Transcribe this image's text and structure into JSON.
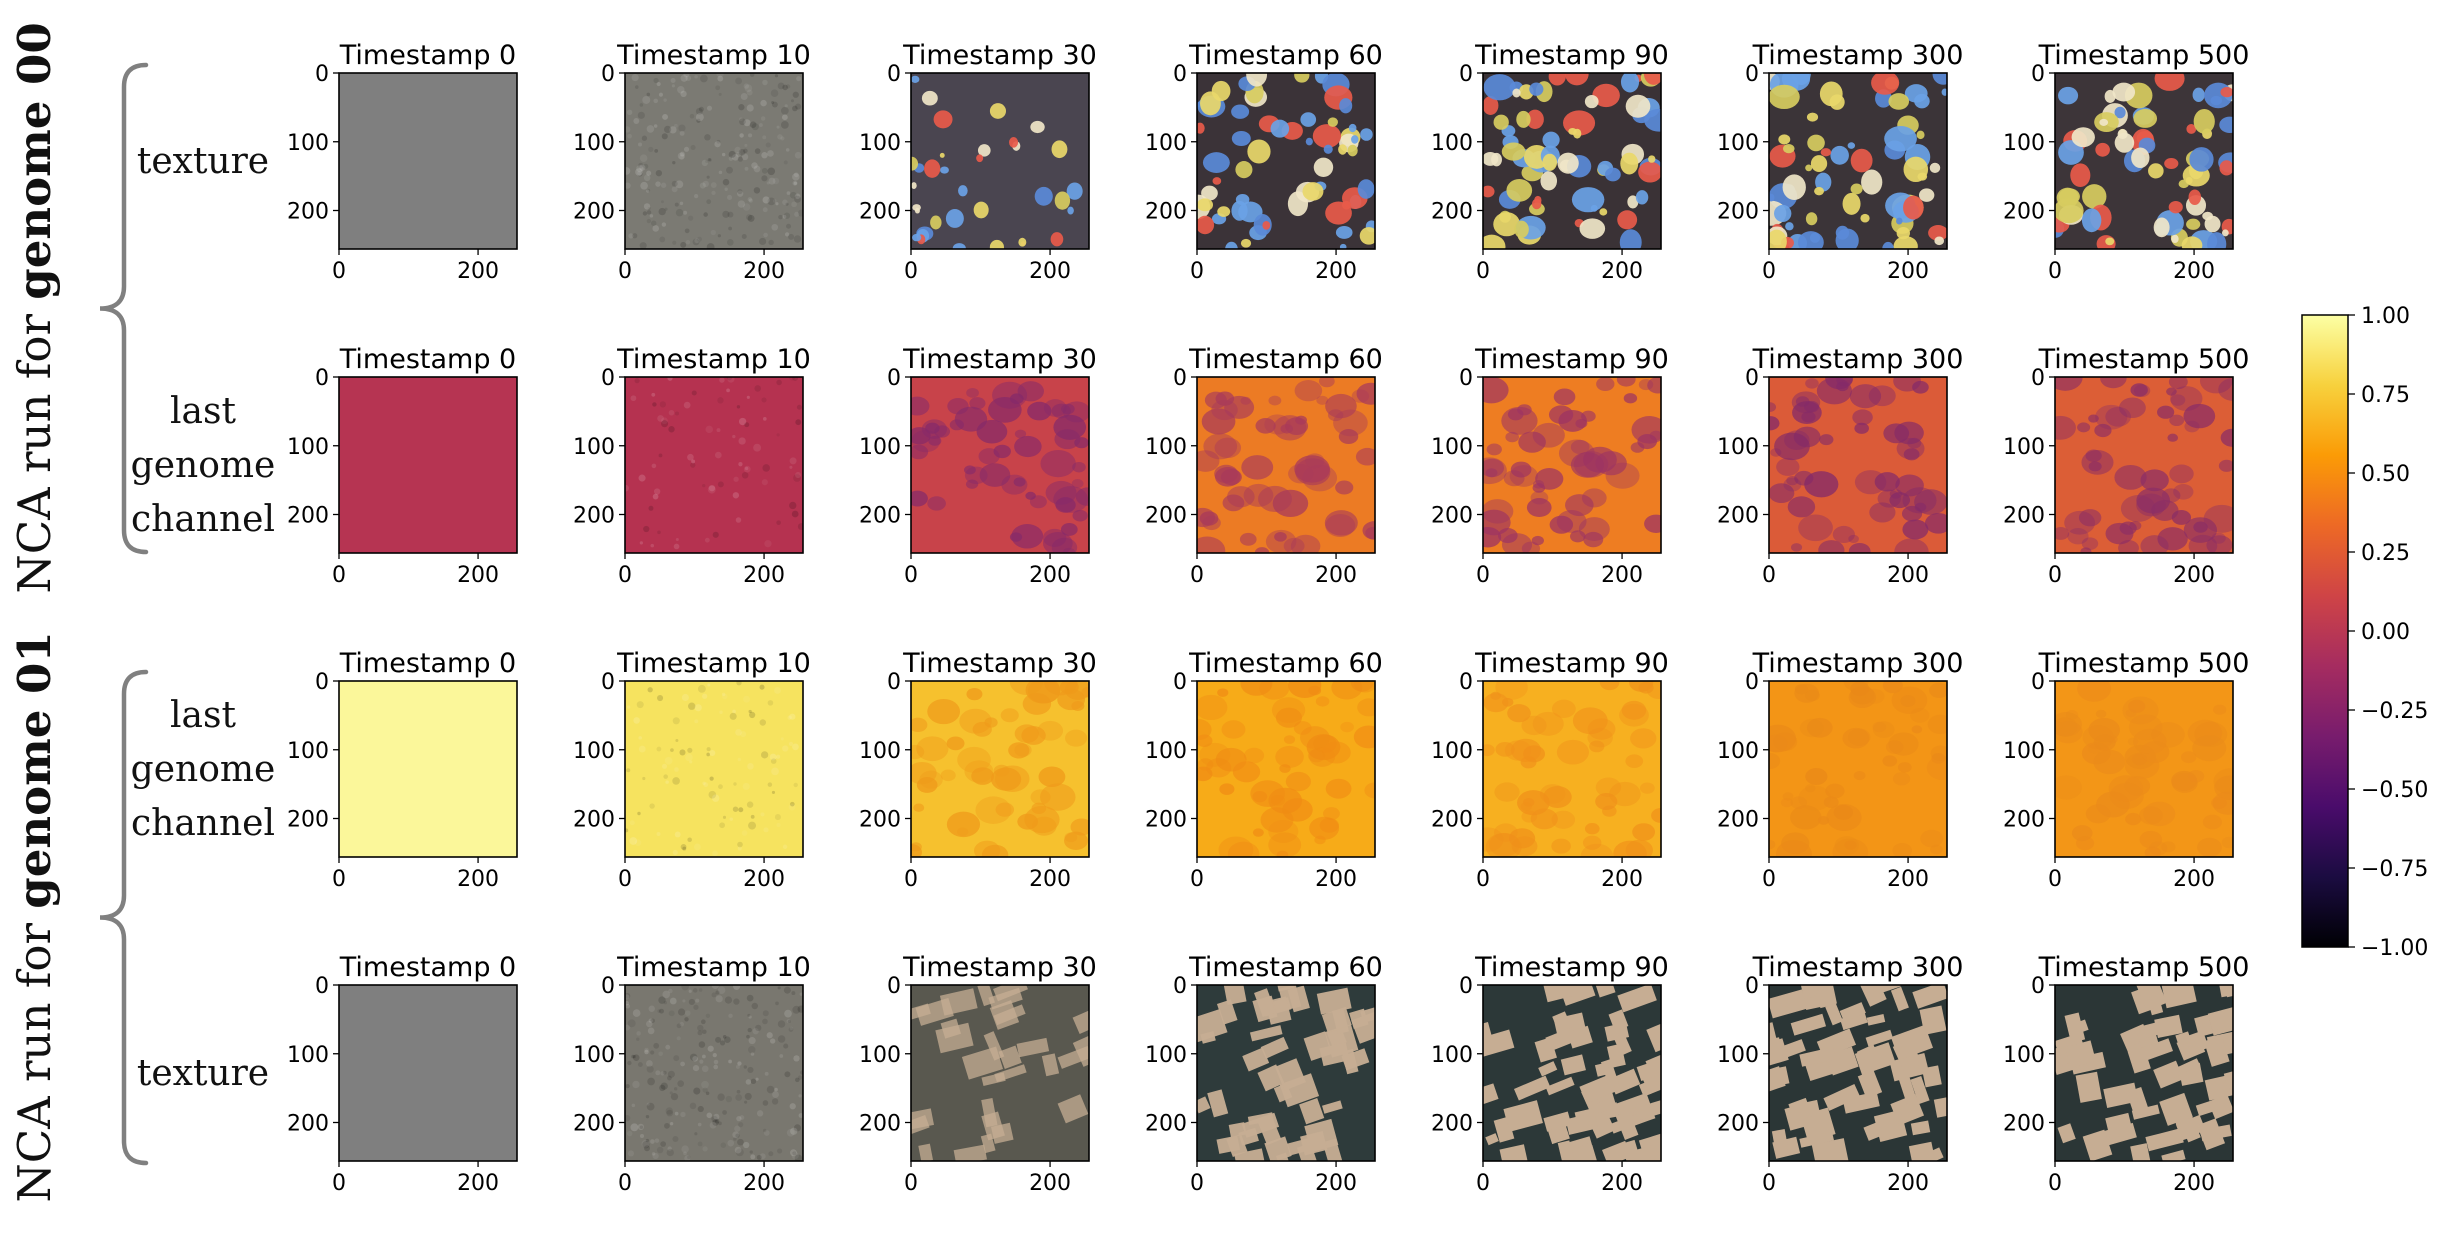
{
  "figure": {
    "groups": [
      {
        "prefix": "NCA run for ",
        "bold": "genome 00",
        "rows": [
          0,
          1
        ]
      },
      {
        "prefix": "NCA run for ",
        "bold": "genome 01",
        "rows": [
          2,
          3
        ]
      }
    ],
    "rows": [
      {
        "label_lines": [
          "texture"
        ],
        "kind": "texture-spots"
      },
      {
        "label_lines": [
          "last",
          "genome",
          "channel"
        ],
        "kind": "channel-g0"
      },
      {
        "label_lines": [
          "last",
          "genome",
          "channel"
        ],
        "kind": "channel-g1"
      },
      {
        "label_lines": [
          "texture"
        ],
        "kind": "texture-blocks"
      }
    ],
    "timestamps": [
      0,
      10,
      30,
      60,
      90,
      300,
      500
    ],
    "panel_title_prefix": "Timestamp ",
    "x_ticks": [
      "0",
      "200"
    ],
    "y_ticks": [
      "0",
      "100",
      "200"
    ],
    "cells": [
      [
        {
          "fill": "#7f7f7f"
        },
        {
          "fill": "#7b7a73",
          "grain": 0.9
        },
        {
          "fill": "#4a4550",
          "dots": 0.5
        },
        {
          "fill": "#3b3338",
          "dots": 0.9
        },
        {
          "fill": "#3a3236",
          "dots": 1.0
        },
        {
          "fill": "#3b3438",
          "dots": 1.0
        },
        {
          "fill": "#3d3539",
          "dots": 1.0
        }
      ],
      [
        {
          "fill": "#b63452"
        },
        {
          "fill": "#b53250",
          "grain": 0.3
        },
        {
          "fill": "#c8434a",
          "blob": "#852a6a"
        },
        {
          "fill": "#ec7b24",
          "blob": "#a83a5a"
        },
        {
          "fill": "#ee7d22",
          "blob": "#9c3363"
        },
        {
          "fill": "#db5b38",
          "blob": "#832a69"
        },
        {
          "fill": "#dc5e36",
          "blob": "#8a2d66"
        }
      ],
      [
        {
          "fill": "#fbf79a"
        },
        {
          "fill": "#f6e35f",
          "grain": 0.4
        },
        {
          "fill": "#f6c12e",
          "blob": "#ef9a1a"
        },
        {
          "fill": "#f7ab18",
          "blob": "#f08c14"
        },
        {
          "fill": "#f7b020",
          "blob": "#f0911a"
        },
        {
          "fill": "#f39516",
          "blob": "#ea8a18"
        },
        {
          "fill": "#f39617",
          "blob": "#eb8b1a"
        }
      ],
      [
        {
          "fill": "#7f7f7f"
        },
        {
          "fill": "#79776f",
          "grain": 0.9
        },
        {
          "fill": "#59584f",
          "blocks": 0.45
        },
        {
          "fill": "#2e3b3b",
          "blocks": 0.9
        },
        {
          "fill": "#2c3838",
          "blocks": 1.0
        },
        {
          "fill": "#2b3636",
          "blocks": 1.0
        },
        {
          "fill": "#2b3636",
          "blocks": 1.0
        }
      ]
    ]
  },
  "colorbar": {
    "colormap": "inferno",
    "min": -1.0,
    "max": 1.0,
    "ticks": [
      "1.00",
      "0.75",
      "0.50",
      "0.25",
      "0.00",
      "−0.25",
      "−0.50",
      "−0.75",
      "−1.00"
    ],
    "stops": [
      "#fcffa4",
      "#f7d13d",
      "#fb9b06",
      "#ed6925",
      "#cf4446",
      "#a52c60",
      "#781c6d",
      "#4a0c6b",
      "#1b0c41",
      "#000004"
    ]
  },
  "colors": {
    "bracket": "#808080",
    "dot_palette": [
      "#e9d86a",
      "#5a8ad8",
      "#e85a4a",
      "#f0e6c8",
      "#6aa2e6",
      "#d7cc60"
    ],
    "block_light": "#c6ad93"
  }
}
